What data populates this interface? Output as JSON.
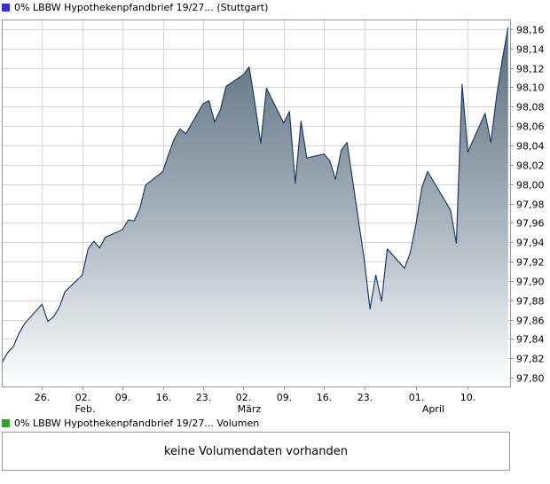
{
  "header": {
    "title": "0% LBBW Hypothekenpfandbrief 19/27... (Stuttgart)",
    "marker_color": "#3333cc"
  },
  "volume": {
    "legend": "0% LBBW Hypothekenpfandbrief 19/27... Volumen",
    "marker_color": "#2aa52a",
    "message": "keine Volumendaten vorhanden"
  },
  "chart_data": {
    "type": "area",
    "title": "0% LBBW Hypothekenpfandbrief 19/27... (Stuttgart)",
    "x_unit": "calendar days since 19.01. (mid-January start)",
    "date_range": [
      "19.01.",
      "17.04."
    ],
    "t_range": [
      0,
      88.5
    ],
    "ylim": [
      97.79,
      98.17
    ],
    "grid": true,
    "legend_position": "top-left",
    "y_ticks": [
      {
        "v": 98.16,
        "label": "98,16"
      },
      {
        "v": 98.14,
        "label": "98,14"
      },
      {
        "v": 98.12,
        "label": "98,12"
      },
      {
        "v": 98.1,
        "label": "98,10"
      },
      {
        "v": 98.08,
        "label": "98,08"
      },
      {
        "v": 98.06,
        "label": "98,06"
      },
      {
        "v": 98.04,
        "label": "98,04"
      },
      {
        "v": 98.02,
        "label": "98,02"
      },
      {
        "v": 98.0,
        "label": "98,00"
      },
      {
        "v": 97.98,
        "label": "97,98"
      },
      {
        "v": 97.96,
        "label": "97,96"
      },
      {
        "v": 97.94,
        "label": "97,94"
      },
      {
        "v": 97.92,
        "label": "97,92"
      },
      {
        "v": 97.9,
        "label": "97,90"
      },
      {
        "v": 97.88,
        "label": "97,88"
      },
      {
        "v": 97.86,
        "label": "97,86"
      },
      {
        "v": 97.84,
        "label": "97,84"
      },
      {
        "v": 97.82,
        "label": "97,82"
      },
      {
        "v": 97.8,
        "label": "97,80"
      }
    ],
    "x_ticks": [
      {
        "t": 7,
        "label": "26."
      },
      {
        "t": 14,
        "label": "02."
      },
      {
        "t": 21,
        "label": "09."
      },
      {
        "t": 28,
        "label": "16."
      },
      {
        "t": 35,
        "label": "23."
      },
      {
        "t": 42,
        "label": "02."
      },
      {
        "t": 49,
        "label": "09."
      },
      {
        "t": 56,
        "label": "16."
      },
      {
        "t": 63,
        "label": "23."
      },
      {
        "t": 72,
        "label": "01."
      },
      {
        "t": 81,
        "label": "10."
      }
    ],
    "month_labels": [
      {
        "t": 14.5,
        "label": "Feb."
      },
      {
        "t": 43,
        "label": "März"
      },
      {
        "t": 75,
        "label": "April"
      }
    ],
    "series": [
      {
        "name": "0% LBBW Hypothekenpfandbrief 19/27...",
        "points": [
          [
            0,
            97.815
          ],
          [
            1,
            97.826
          ],
          [
            2,
            97.832
          ],
          [
            3,
            97.846
          ],
          [
            4,
            97.856
          ],
          [
            7,
            97.876
          ],
          [
            8,
            97.858
          ],
          [
            9,
            97.863
          ],
          [
            10,
            97.873
          ],
          [
            11,
            97.889
          ],
          [
            14,
            97.906
          ],
          [
            15,
            97.933
          ],
          [
            16,
            97.941
          ],
          [
            17,
            97.934
          ],
          [
            18,
            97.945
          ],
          [
            21,
            97.953
          ],
          [
            22,
            97.963
          ],
          [
            23,
            97.962
          ],
          [
            24,
            97.975
          ],
          [
            25,
            97.999
          ],
          [
            28,
            98.013
          ],
          [
            29,
            98.031
          ],
          [
            30,
            98.047
          ],
          [
            31,
            98.057
          ],
          [
            32,
            98.052
          ],
          [
            35,
            98.083
          ],
          [
            36,
            98.086
          ],
          [
            37,
            98.064
          ],
          [
            38,
            98.077
          ],
          [
            39,
            98.101
          ],
          [
            42,
            98.113
          ],
          [
            43,
            98.121
          ],
          [
            44,
            98.083
          ],
          [
            45,
            98.042
          ],
          [
            46,
            98.099
          ],
          [
            49,
            98.063
          ],
          [
            50,
            98.075
          ],
          [
            51,
            98.001
          ],
          [
            52,
            98.065
          ],
          [
            53,
            98.027
          ],
          [
            56,
            98.031
          ],
          [
            57,
            98.024
          ],
          [
            58,
            98.005
          ],
          [
            59,
            98.035
          ],
          [
            60,
            98.043
          ],
          [
            63,
            97.922
          ],
          [
            64,
            97.871
          ],
          [
            65,
            97.906
          ],
          [
            66,
            97.879
          ],
          [
            67,
            97.933
          ],
          [
            70,
            97.913
          ],
          [
            71,
            97.929
          ],
          [
            72,
            97.959
          ],
          [
            73,
            97.996
          ],
          [
            74,
            98.013
          ],
          [
            78,
            97.973
          ],
          [
            79,
            97.939
          ],
          [
            80,
            98.103
          ],
          [
            81,
            98.033
          ],
          [
            84,
            98.073
          ],
          [
            85,
            98.043
          ],
          [
            86,
            98.091
          ],
          [
            87,
            98.129
          ],
          [
            88,
            98.162
          ]
        ]
      }
    ],
    "colors": {
      "line": "#1c3e66",
      "fill_top": "#546879",
      "fill_mid": "#a9b4bd",
      "fill_bottom": "#ffffff",
      "grid": "#d6d6d6",
      "frame": "#999999",
      "axis_text": "#000000"
    }
  }
}
